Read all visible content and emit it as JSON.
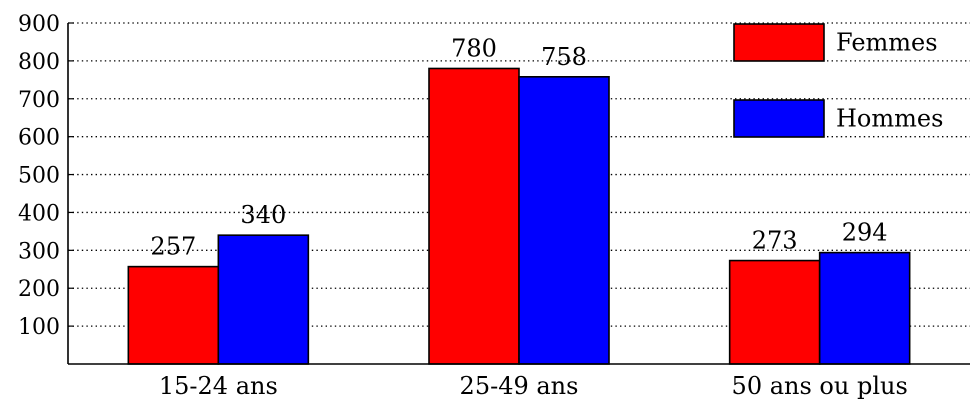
{
  "chart_data": {
    "type": "bar",
    "categories": [
      "15-24 ans",
      "25-49 ans",
      "50 ans ou plus"
    ],
    "series": [
      {
        "name": "Femmes",
        "color": "#ff0000",
        "values": [
          257,
          780,
          273
        ]
      },
      {
        "name": "Hommes",
        "color": "#0000ff",
        "values": [
          340,
          758,
          294
        ]
      }
    ],
    "ylim": [
      0,
      900
    ],
    "yticks": [
      100,
      200,
      300,
      400,
      500,
      600,
      700,
      800,
      900
    ],
    "grid": true,
    "legend_position": "top-right",
    "data_labels": true
  }
}
